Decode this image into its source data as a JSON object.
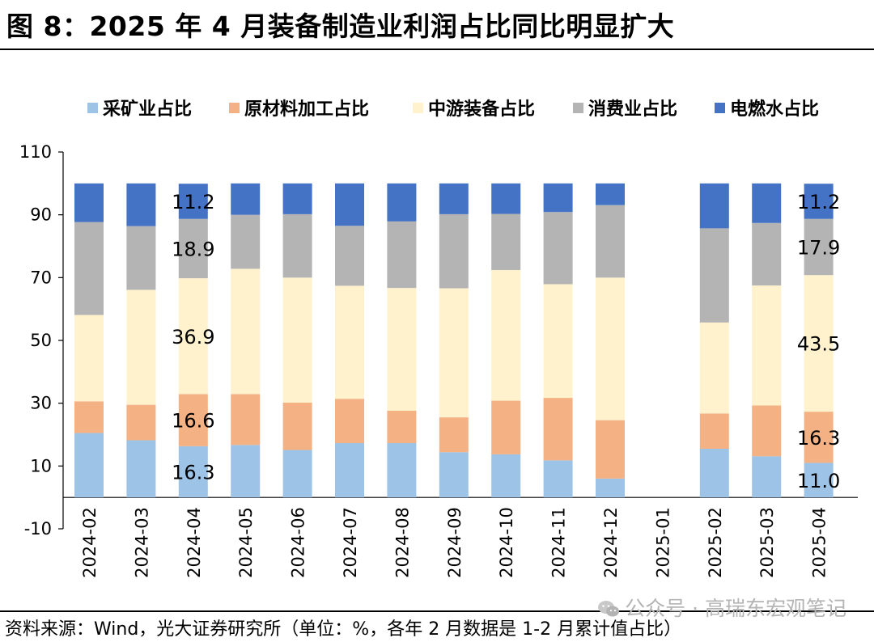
{
  "figure": {
    "title": "图 8：2025 年 4 月装备制造业利润占比同比明显扩大",
    "source": "资料来源：Wind，光大证券研究所（单位：%，各年 2 月数据是 1-2 月累计值占比）",
    "watermark": "公众号 · 高瑞东宏观笔记",
    "watermark_icon": "wechat-icon"
  },
  "chart_data": {
    "type": "bar",
    "stacked": true,
    "categories": [
      "2024-02",
      "2024-03",
      "2024-04",
      "2024-05",
      "2024-06",
      "2024-07",
      "2024-08",
      "2024-09",
      "2024-10",
      "2024-11",
      "2024-12",
      "2025-01",
      "2025-02",
      "2025-03",
      "2025-04"
    ],
    "series": [
      {
        "name": "采矿业占比",
        "color": "#9dc3e6",
        "values": [
          20.5,
          18.2,
          16.3,
          16.7,
          15.1,
          17.3,
          17.3,
          14.4,
          13.7,
          11.8,
          6.0,
          null,
          15.5,
          13.1,
          11.0
        ]
      },
      {
        "name": "原材料加工占比",
        "color": "#f4b183",
        "values": [
          10.1,
          11.3,
          16.6,
          16.2,
          15.1,
          14.1,
          10.3,
          11.1,
          17.1,
          19.9,
          18.6,
          null,
          11.2,
          16.2,
          16.3
        ]
      },
      {
        "name": "中游装备占比",
        "color": "#fff2cc",
        "values": [
          27.5,
          36.6,
          36.9,
          39.9,
          39.8,
          36.0,
          39.1,
          41.1,
          41.6,
          36.2,
          45.4,
          null,
          29.0,
          38.2,
          43.5
        ]
      },
      {
        "name": "消费业占比",
        "color": "#b4b4b4",
        "values": [
          29.6,
          20.3,
          18.9,
          17.2,
          20.2,
          19.1,
          21.2,
          23.6,
          17.9,
          23.0,
          23.1,
          null,
          30.0,
          19.9,
          17.9
        ]
      },
      {
        "name": "电燃水占比",
        "color": "#4472c4",
        "values": [
          12.3,
          13.6,
          11.2,
          10.0,
          9.8,
          13.5,
          12.1,
          9.8,
          9.7,
          9.1,
          6.9,
          null,
          14.3,
          12.6,
          11.2
        ]
      }
    ],
    "data_labels": [
      {
        "category": "2024-04",
        "series": 0,
        "text": "16.3"
      },
      {
        "category": "2024-04",
        "series": 1,
        "text": "16.6"
      },
      {
        "category": "2024-04",
        "series": 2,
        "text": "36.9"
      },
      {
        "category": "2024-04",
        "series": 3,
        "text": "18.9"
      },
      {
        "category": "2024-04",
        "series": 4,
        "text": "11.2"
      },
      {
        "category": "2025-04",
        "series": 0,
        "text": "11.0"
      },
      {
        "category": "2025-04",
        "series": 1,
        "text": "16.3"
      },
      {
        "category": "2025-04",
        "series": 2,
        "text": "43.5"
      },
      {
        "category": "2025-04",
        "series": 3,
        "text": "17.9"
      },
      {
        "category": "2025-04",
        "series": 4,
        "text": "11.2"
      }
    ],
    "ylim": [
      -10,
      110
    ],
    "yticks": [
      -10,
      10,
      30,
      50,
      70,
      90,
      110
    ],
    "legend_position": "top",
    "grid": false
  }
}
